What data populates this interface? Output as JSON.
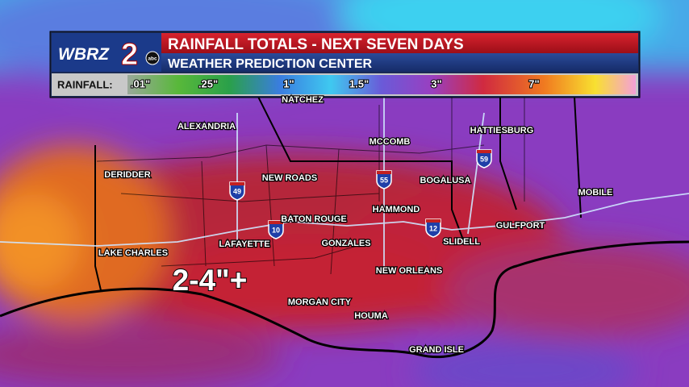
{
  "header": {
    "logo": {
      "call": "WBRZ",
      "number": "2",
      "network": "abc"
    },
    "title": "RAINFALL TOTALS - NEXT SEVEN DAYS",
    "subtitle": "WEATHER PREDICTION CENTER"
  },
  "legend": {
    "label": "RAINFALL:",
    "ticks": [
      ".01\"",
      ".25\"",
      "1\"",
      "1.5\"",
      "3\"",
      "7\""
    ]
  },
  "cities": [
    {
      "label": "NATCHEZ"
    },
    {
      "label": "ALEXANDRIA"
    },
    {
      "label": "HATTIESBURG"
    },
    {
      "label": "MCCOMB"
    },
    {
      "label": "DERIDDER"
    },
    {
      "label": "NEW ROADS"
    },
    {
      "label": "BOGALUSA"
    },
    {
      "label": "MOBILE"
    },
    {
      "label": "HAMMOND"
    },
    {
      "label": "BATON ROUGE"
    },
    {
      "label": "GULFPORT"
    },
    {
      "label": "SLIDELL"
    },
    {
      "label": "LAFAYETTE"
    },
    {
      "label": "GONZALES"
    },
    {
      "label": "LAKE CHARLES"
    },
    {
      "label": "NEW ORLEANS"
    },
    {
      "label": "MORGAN CITY"
    },
    {
      "label": "HOUMA"
    },
    {
      "label": "GRAND ISLE"
    }
  ],
  "interstates": [
    {
      "label": "49"
    },
    {
      "label": "10"
    },
    {
      "label": "55"
    },
    {
      "label": "12"
    },
    {
      "label": "59"
    }
  ],
  "annotation": "2-4\"+"
}
